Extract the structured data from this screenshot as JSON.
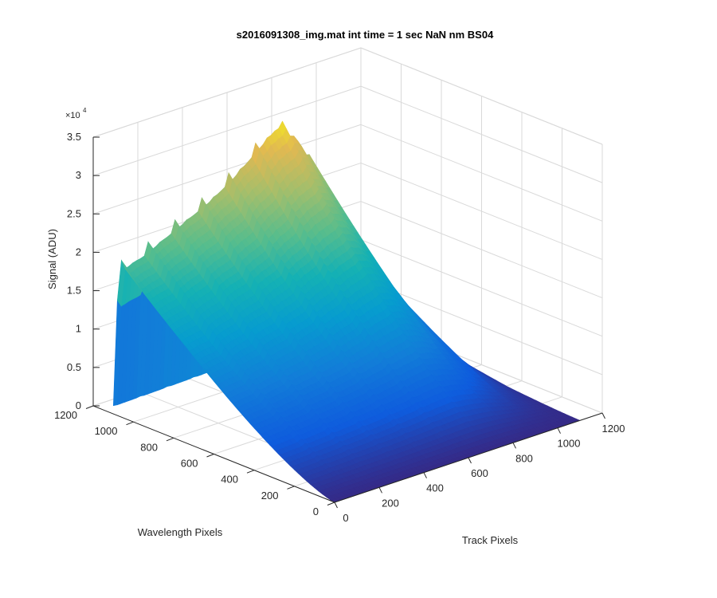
{
  "chart_data": {
    "type": "surface",
    "title": "s2016091308_img.mat int time = 1 sec  NaN nm BS04",
    "xlabel": "Track Pixels",
    "ylabel": "Wavelength Pixels",
    "zlabel": "Signal (ADU)",
    "xlim": [
      0,
      1200
    ],
    "ylim": [
      0,
      1200
    ],
    "zlim": [
      0,
      35000
    ],
    "x_ticks": [
      "0",
      "200",
      "400",
      "600",
      "800",
      "1000",
      "1200"
    ],
    "y_ticks": [
      "0",
      "200",
      "400",
      "600",
      "800",
      "1000",
      "1200"
    ],
    "z_ticks": [
      "0",
      "0.5",
      "1",
      "1.5",
      "2",
      "2.5",
      "3",
      "3.5"
    ],
    "z_exponent_label": "×10",
    "z_exponent_power": "4",
    "grid": true,
    "colormap": "parula",
    "profile": {
      "track_pixels": [
        0,
        100,
        200,
        300,
        400,
        500,
        600,
        700,
        800,
        900,
        1000,
        1100
      ],
      "peak_signal": [
        20500,
        21500,
        23000,
        24500,
        26000,
        28000,
        30500,
        33000,
        30000,
        22000,
        12000,
        3000
      ],
      "ripple_period_track_pixels": 60,
      "ripple_amplitude": 1500
    }
  }
}
